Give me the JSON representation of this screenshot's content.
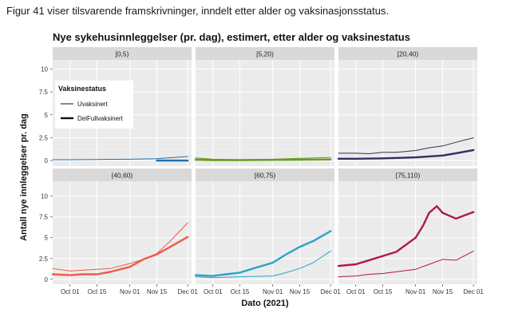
{
  "document": {
    "caption": "Figur 41 viser tilsvarende framskrivninger, inndelt etter alder og vaksinasjonsstatus."
  },
  "chart_data": {
    "type": "line",
    "title": "Nye sykehusinnleggelser (pr. dag), estimert, etter alder og vaksinestatus",
    "xlabel": "Dato (2021)",
    "ylabel": "Antall nye innleggelser pr. dag",
    "x_ticks": [
      "Oct 01",
      "Oct 15",
      "Nov 01",
      "Nov 15",
      "Dec 01"
    ],
    "x_tick_dates": [
      "2021-10-01",
      "2021-10-15",
      "2021-11-01",
      "2021-11-15",
      "2021-12-01"
    ],
    "x_range": [
      "2021-09-22",
      "2021-12-03"
    ],
    "row_y_ranges": [
      [
        -0.6,
        11
      ],
      [
        -0.6,
        11.8
      ]
    ],
    "row_y_ticks": [
      [
        "0",
        "2.5",
        "5",
        "7.5",
        "10"
      ],
      [
        "0",
        "2.5",
        "5",
        "7.5",
        "10"
      ]
    ],
    "grid": true,
    "legend": {
      "title": "Vaksinestatus",
      "placement": "inside top-left of first panel",
      "entries": [
        "Uvaksinert",
        "DelFullvaksinert"
      ]
    },
    "panels": [
      {
        "label": "[0,5)",
        "color": "#1f6fb0",
        "series": [
          {
            "name": "Uvaksinert",
            "x": [
              "2021-09-22",
              "2021-10-01",
              "2021-10-15",
              "2021-11-01",
              "2021-11-15",
              "2021-12-01"
            ],
            "y": [
              0.1,
              0.1,
              0.12,
              0.15,
              0.2,
              0.45
            ]
          },
          {
            "name": "DelFullvaksinert",
            "x": [
              "2021-11-15",
              "2021-11-22",
              "2021-12-01"
            ],
            "y": [
              0.0,
              0.0,
              0.0
            ]
          }
        ]
      },
      {
        "label": "[5,20)",
        "color": "#6a9a1f",
        "series": [
          {
            "name": "Uvaksinert",
            "x": [
              "2021-09-22",
              "2021-10-01",
              "2021-10-15",
              "2021-11-01",
              "2021-11-15",
              "2021-12-01"
            ],
            "y": [
              0.3,
              0.15,
              0.1,
              0.15,
              0.25,
              0.35
            ]
          },
          {
            "name": "DelFullvaksinert",
            "x": [
              "2021-09-22",
              "2021-10-01",
              "2021-10-15",
              "2021-11-01",
              "2021-11-15",
              "2021-12-01"
            ],
            "y": [
              0.1,
              0.05,
              0.05,
              0.08,
              0.1,
              0.12
            ]
          }
        ]
      },
      {
        "label": "[20,40)",
        "color": "#2f3061",
        "series": [
          {
            "name": "Uvaksinert",
            "x": [
              "2021-09-22",
              "2021-10-01",
              "2021-10-08",
              "2021-10-15",
              "2021-10-22",
              "2021-11-01",
              "2021-11-08",
              "2021-11-15",
              "2021-11-22",
              "2021-12-01"
            ],
            "y": [
              0.8,
              0.8,
              0.75,
              0.9,
              0.9,
              1.1,
              1.4,
              1.6,
              2.0,
              2.5
            ]
          },
          {
            "name": "DelFullvaksinert",
            "x": [
              "2021-09-22",
              "2021-10-01",
              "2021-10-15",
              "2021-11-01",
              "2021-11-15",
              "2021-11-22",
              "2021-12-01"
            ],
            "y": [
              0.2,
              0.2,
              0.25,
              0.35,
              0.55,
              0.8,
              1.15
            ]
          }
        ]
      },
      {
        "label": "[40,60)",
        "color": "#ec5b4b",
        "series": [
          {
            "name": "Uvaksinert",
            "x": [
              "2021-09-22",
              "2021-10-01",
              "2021-10-08",
              "2021-10-15",
              "2021-10-22",
              "2021-11-01",
              "2021-11-08",
              "2021-11-15",
              "2021-11-22",
              "2021-12-01"
            ],
            "y": [
              1.3,
              1.0,
              1.1,
              1.2,
              1.3,
              1.9,
              2.4,
              3.1,
              4.6,
              6.8
            ]
          },
          {
            "name": "DelFullvaksinert",
            "x": [
              "2021-09-22",
              "2021-10-01",
              "2021-10-08",
              "2021-10-15",
              "2021-10-22",
              "2021-11-01",
              "2021-11-08",
              "2021-11-15",
              "2021-11-22",
              "2021-12-01"
            ],
            "y": [
              0.6,
              0.5,
              0.6,
              0.6,
              0.9,
              1.5,
              2.4,
              3.0,
              3.9,
              5.1
            ]
          }
        ]
      },
      {
        "label": "[60,75)",
        "color": "#2aa3c8",
        "series": [
          {
            "name": "Uvaksinert",
            "x": [
              "2021-09-22",
              "2021-10-01",
              "2021-10-15",
              "2021-11-01",
              "2021-11-08",
              "2021-11-15",
              "2021-11-22",
              "2021-12-01"
            ],
            "y": [
              0.3,
              0.2,
              0.3,
              0.4,
              0.8,
              1.3,
              2.0,
              3.4
            ]
          },
          {
            "name": "DelFullvaksinert",
            "x": [
              "2021-09-22",
              "2021-10-01",
              "2021-10-08",
              "2021-10-15",
              "2021-10-22",
              "2021-11-01",
              "2021-11-08",
              "2021-11-15",
              "2021-11-22",
              "2021-12-01"
            ],
            "y": [
              0.5,
              0.4,
              0.6,
              0.8,
              1.3,
              2.0,
              3.0,
              3.9,
              4.6,
              5.8
            ]
          }
        ]
      },
      {
        "label": "[75,110)",
        "color": "#b0174a",
        "series": [
          {
            "name": "Uvaksinert",
            "x": [
              "2021-09-22",
              "2021-10-01",
              "2021-10-08",
              "2021-10-15",
              "2021-10-22",
              "2021-11-01",
              "2021-11-08",
              "2021-11-15",
              "2021-11-22",
              "2021-12-01"
            ],
            "y": [
              0.3,
              0.4,
              0.6,
              0.7,
              0.9,
              1.2,
              1.8,
              2.4,
              2.3,
              3.4
            ]
          },
          {
            "name": "DelFullvaksinert",
            "x": [
              "2021-09-22",
              "2021-10-01",
              "2021-10-08",
              "2021-10-15",
              "2021-10-22",
              "2021-11-01",
              "2021-11-05",
              "2021-11-08",
              "2021-11-12",
              "2021-11-15",
              "2021-11-22",
              "2021-12-01"
            ],
            "y": [
              1.6,
              1.8,
              2.3,
              2.8,
              3.3,
              5.0,
              6.5,
              8.0,
              8.8,
              8.0,
              7.3,
              8.1
            ]
          }
        ]
      }
    ]
  }
}
